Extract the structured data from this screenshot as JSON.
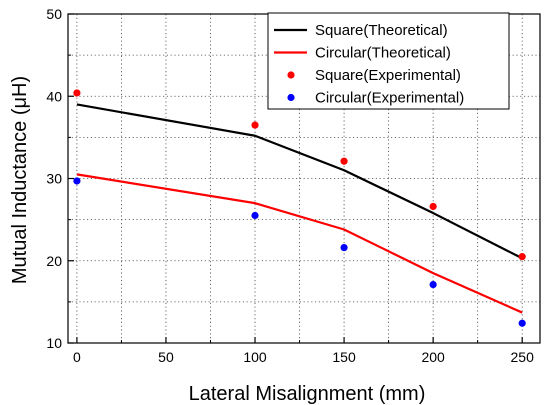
{
  "chart_data": {
    "type": "line",
    "xlabel": "Lateral Misalignment (mm)",
    "ylabel": "Mutual Inductance (μH)",
    "xlim": [
      -5,
      260
    ],
    "ylim": [
      10,
      50
    ],
    "xticks": [
      0,
      50,
      100,
      150,
      200,
      250
    ],
    "yticks": [
      10,
      20,
      30,
      40,
      50
    ],
    "x_tick_labels": [
      "0",
      "50",
      "100",
      "150",
      "200",
      "250"
    ],
    "y_tick_labels": [
      "10",
      "20",
      "30",
      "40",
      "50"
    ],
    "grid": true,
    "legend_position": "top-right",
    "series": [
      {
        "name": "Square(Theoretical)",
        "kind": "line",
        "color": "#000000",
        "x": [
          0,
          100,
          150,
          200,
          250
        ],
        "y": [
          39.0,
          35.2,
          31.0,
          25.8,
          20.3
        ]
      },
      {
        "name": "Circular(Theoretical)",
        "kind": "line",
        "color": "#ff0000",
        "x": [
          0,
          100,
          150,
          200,
          250
        ],
        "y": [
          30.5,
          27.0,
          23.8,
          18.5,
          13.7
        ]
      },
      {
        "name": "Square(Experimental)",
        "kind": "scatter",
        "color": "#ff0000",
        "x": [
          0,
          100,
          150,
          200,
          250
        ],
        "y": [
          40.4,
          36.5,
          32.1,
          26.6,
          20.5
        ]
      },
      {
        "name": "Circular(Experimental)",
        "kind": "scatter",
        "color": "#0000ff",
        "x": [
          0,
          100,
          150,
          200,
          250
        ],
        "y": [
          29.7,
          25.5,
          21.6,
          17.1,
          12.4
        ]
      }
    ]
  }
}
